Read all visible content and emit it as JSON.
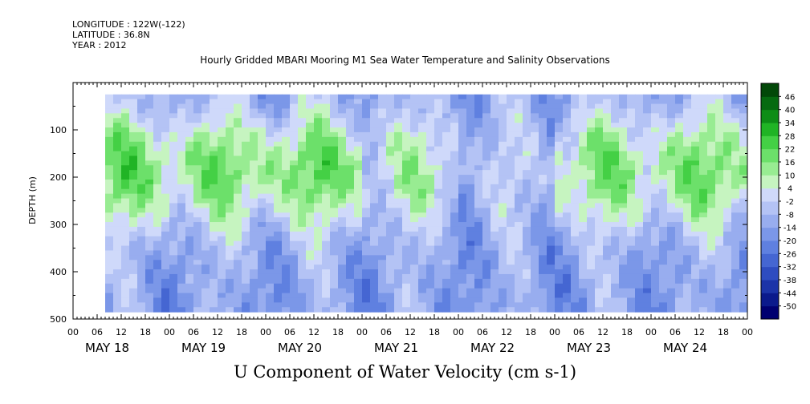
{
  "header": {
    "longitude": "LONGITUDE : 122W(-122)",
    "latitude": "LATITUDE : 36.8N",
    "year": "YEAR : 2012",
    "title": "Hourly Gridded MBARI Mooring M1 Sea Water Temperature and Salinity Observations"
  },
  "chart_data": {
    "type": "heatmap",
    "title": "Hourly Gridded MBARI Mooring M1 Sea Water Temperature and Salinity Observations",
    "xlabel": "U Component of Water Velocity (cm s-1)",
    "ylabel": "DEPTH (m)",
    "x_unit": "hour",
    "xlim": [
      "MAY 18 00",
      "MAY 25 00"
    ],
    "ylim": [
      500,
      0
    ],
    "x_hour_ticks": [
      "00",
      "06",
      "12",
      "18",
      "00",
      "06",
      "12",
      "18",
      "00",
      "06",
      "12",
      "18",
      "00",
      "06",
      "12",
      "18",
      "00",
      "06",
      "12",
      "18",
      "00",
      "06",
      "12",
      "18",
      "00",
      "06",
      "12",
      "18",
      "00"
    ],
    "x_day_labels": [
      "MAY 18",
      "MAY 19",
      "MAY 20",
      "MAY 21",
      "MAY 22",
      "MAY 23",
      "MAY 24"
    ],
    "y_ticks": [
      100,
      200,
      300,
      400,
      500
    ],
    "y_tick_labels": [
      "100",
      "200",
      "300",
      "400",
      "500"
    ],
    "colorbar": {
      "levels": [
        -50,
        -44,
        -38,
        -32,
        -26,
        -20,
        -14,
        -8,
        -2,
        4,
        10,
        16,
        22,
        28,
        34,
        40,
        46
      ],
      "labels": [
        "46",
        "40",
        "34",
        "28",
        "22",
        "16",
        "10",
        "4",
        "-2",
        "-8",
        "-14",
        "-20",
        "-26",
        "-32",
        "-38",
        "-44",
        "-50"
      ],
      "colors_low_to_high": [
        "#000070",
        "#0b1a8c",
        "#1c34a8",
        "#2e4cc0",
        "#4566d2",
        "#5f80e0",
        "#7b97e8",
        "#98adef",
        "#b4c3f5",
        "#cfd9fa",
        "#c6f4c0",
        "#98ec92",
        "#6ce06a",
        "#44d045",
        "#20b425",
        "#0d8d16",
        "#066a10",
        "#024808"
      ]
    },
    "data_coverage_hours": [
      8,
      168
    ],
    "data_depth_range": [
      25,
      480
    ],
    "columns": [
      {
        "day": "MAY 18",
        "shallow": "positive (green)",
        "deep": "negative (blue)"
      },
      {
        "day": "MAY 19",
        "shallow": "positive (green)",
        "deep": "negative (blue)"
      },
      {
        "day": "MAY 20",
        "shallow": "positive (green)",
        "deep": "negative (blue)"
      },
      {
        "day": "MAY 21",
        "shallow": "mixed",
        "deep": "negative (blue)"
      },
      {
        "day": "MAY 22",
        "shallow": "negative (blue)",
        "deep": "negative (blue)"
      },
      {
        "day": "MAY 23",
        "shallow": "positive (green)",
        "deep": "mixed"
      },
      {
        "day": "MAY 24",
        "shallow": "positive (green)",
        "deep": "mixed"
      }
    ]
  }
}
